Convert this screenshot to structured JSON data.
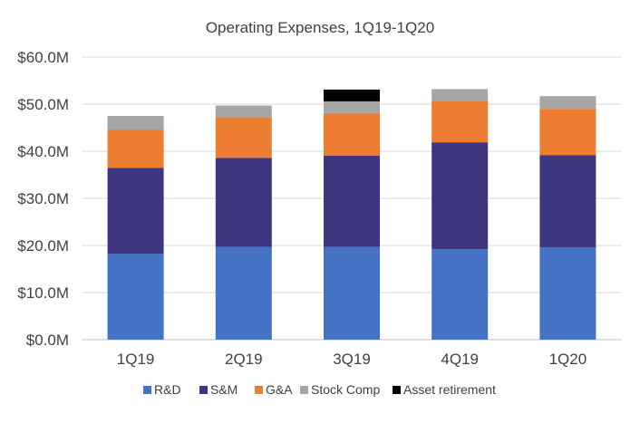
{
  "chart_data": {
    "type": "bar",
    "stacked": true,
    "title": "Operating Expenses, 1Q19-1Q20",
    "xlabel": "",
    "ylabel": "",
    "ylim": [
      0,
      60
    ],
    "grid": true,
    "legend_position": "bottom",
    "categories": [
      "1Q19",
      "2Q19",
      "3Q19",
      "4Q19",
      "1Q20"
    ],
    "y_ticks": [
      {
        "value": 0,
        "label": "$0.0M"
      },
      {
        "value": 10,
        "label": "$10.0M"
      },
      {
        "value": 20,
        "label": "$20.0M"
      },
      {
        "value": 30,
        "label": "$30.0M"
      },
      {
        "value": 40,
        "label": "$40.0M"
      },
      {
        "value": 50,
        "label": "$50.0M"
      },
      {
        "value": 60,
        "label": "$60.0M"
      }
    ],
    "series": [
      {
        "name": "R&D",
        "color": "#4472C4",
        "values": [
          18.2,
          19.7,
          19.7,
          19.2,
          19.6
        ]
      },
      {
        "name": "S&M",
        "color": "#3F3680",
        "values": [
          18.3,
          18.9,
          19.4,
          22.7,
          19.6
        ]
      },
      {
        "name": "G&A",
        "color": "#ED7D31",
        "values": [
          8.1,
          8.6,
          9.0,
          8.8,
          9.8
        ]
      },
      {
        "name": "Stock Comp",
        "color": "#A5A5A5",
        "values": [
          2.9,
          2.5,
          2.5,
          2.5,
          2.7
        ]
      },
      {
        "name": "Asset retirement",
        "color": "#000000",
        "values": [
          0,
          0,
          2.5,
          0,
          0
        ]
      }
    ]
  }
}
